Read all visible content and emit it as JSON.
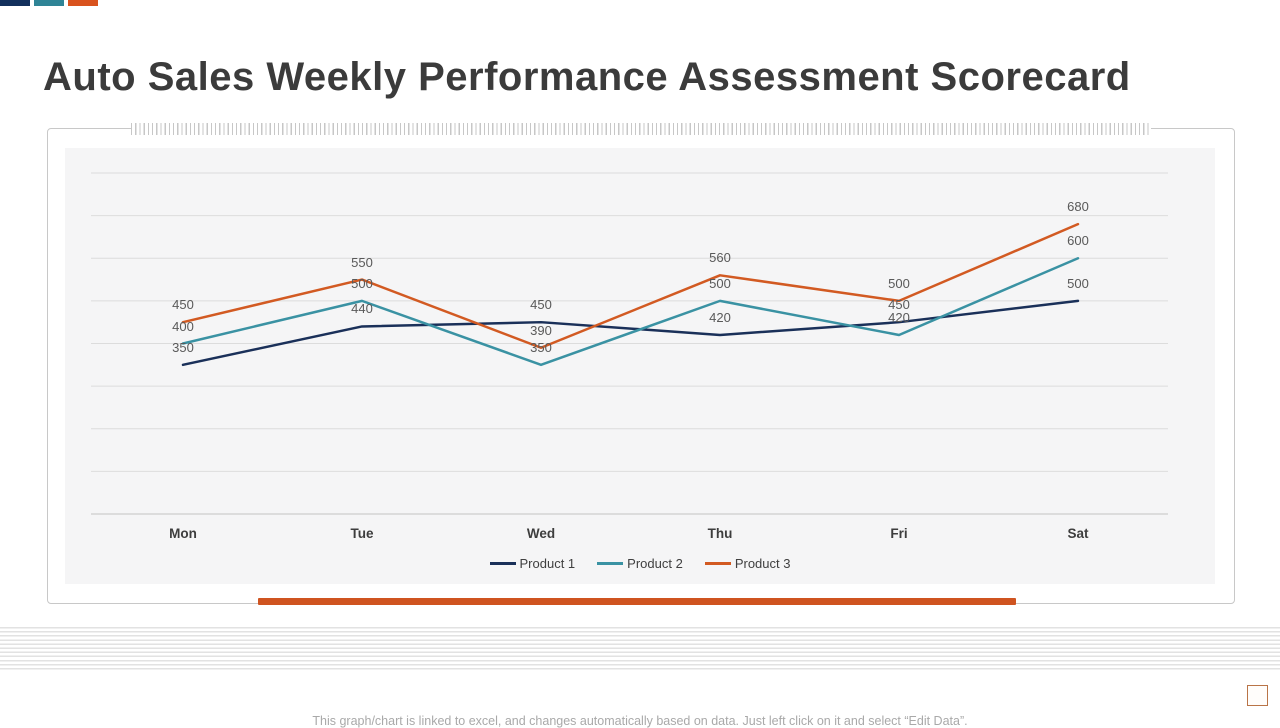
{
  "brand": {
    "bar_colors": [
      "#12305c",
      "#2f8496",
      "#d9531e"
    ]
  },
  "header": {
    "title": "Auto Sales Weekly Performance Assessment Scorecard"
  },
  "chart_data": {
    "type": "line",
    "categories": [
      "Mon",
      "Tue",
      "Wed",
      "Thu",
      "Fri",
      "Sat"
    ],
    "series": [
      {
        "name": "Product 1",
        "color": "#1a3059",
        "values": [
          350,
          440,
          450,
          420,
          450,
          500
        ]
      },
      {
        "name": "Product 2",
        "color": "#3a92a3",
        "values": [
          400,
          500,
          350,
          500,
          420,
          600
        ]
      },
      {
        "name": "Product 3",
        "color": "#d25a22",
        "values": [
          450,
          550,
          390,
          560,
          500,
          680
        ]
      }
    ],
    "title": "",
    "xlabel": "",
    "ylabel": "",
    "ylim": [
      0,
      800
    ],
    "gridline_step": 100,
    "grid": true,
    "y_axis_labels_shown": false,
    "data_labels": true,
    "legend_position": "bottom",
    "plot_bg": "#f5f5f6",
    "gridline_color": "#dcdcdc",
    "axis_line_color": "#c2c2c2",
    "data_label_color": "#595959"
  },
  "footer": {
    "note": "This graph/chart is linked to excel,  and changes automatically based on data. Just left click on it and select “Edit Data”."
  }
}
